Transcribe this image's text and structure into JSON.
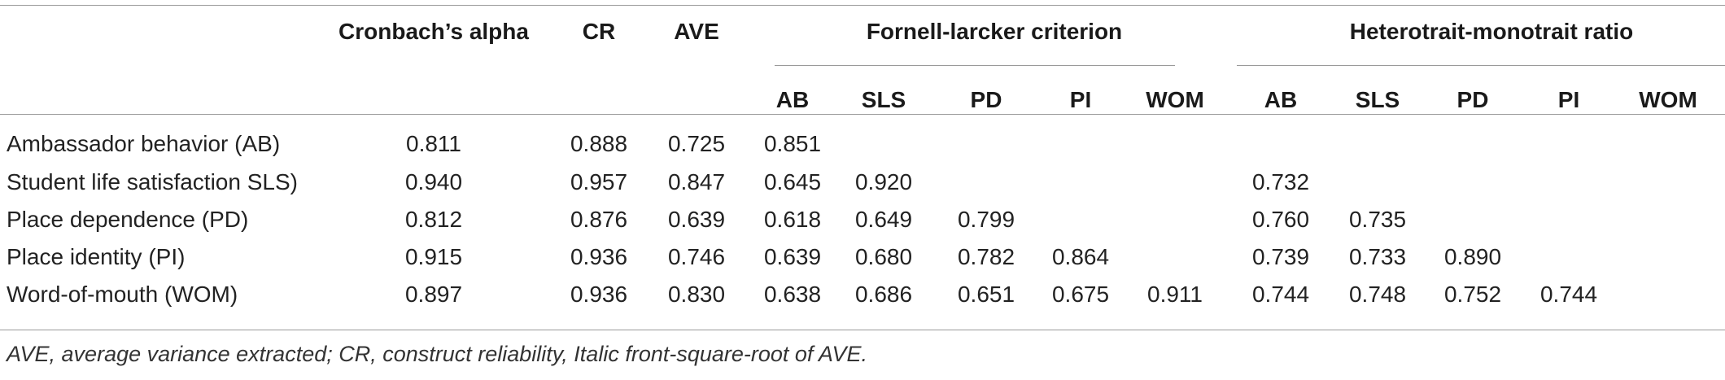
{
  "table": {
    "group_headers": {
      "cronbach": "Cronbach’s alpha",
      "cr": "CR",
      "ave": "AVE",
      "fornell": "Fornell-larcker criterion",
      "htmt": "Heterotrait-monotrait ratio"
    },
    "sub_headers": {
      "fornell": [
        "AB",
        "SLS",
        "PD",
        "PI",
        "WOM"
      ],
      "htmt": [
        "AB",
        "SLS",
        "PD",
        "PI",
        "WOM"
      ]
    },
    "rows": [
      {
        "label": "Ambassador behavior (AB)",
        "cronbach": "0.811",
        "cr": "0.888",
        "ave": "0.725",
        "fornell": [
          "0.851",
          "",
          "",
          "",
          ""
        ],
        "htmt": [
          "",
          "",
          "",
          "",
          ""
        ]
      },
      {
        "label": "Student life satisfaction SLS)",
        "cronbach": "0.940",
        "cr": "0.957",
        "ave": "0.847",
        "fornell": [
          "0.645",
          "0.920",
          "",
          "",
          ""
        ],
        "htmt": [
          "0.732",
          "",
          "",
          "",
          ""
        ]
      },
      {
        "label": "Place dependence (PD)",
        "cronbach": "0.812",
        "cr": "0.876",
        "ave": "0.639",
        "fornell": [
          "0.618",
          "0.649",
          "0.799",
          "",
          ""
        ],
        "htmt": [
          "0.760",
          "0.735",
          "",
          "",
          ""
        ]
      },
      {
        "label": "Place identity (PI)",
        "cronbach": "0.915",
        "cr": "0.936",
        "ave": "0.746",
        "fornell": [
          "0.639",
          "0.680",
          "0.782",
          "0.864",
          ""
        ],
        "htmt": [
          "0.739",
          "0.733",
          "0.890",
          "",
          ""
        ]
      },
      {
        "label": "Word-of-mouth (WOM)",
        "cronbach": "0.897",
        "cr": "0.936",
        "ave": "0.830",
        "fornell": [
          "0.638",
          "0.686",
          "0.651",
          "0.675",
          "0.911"
        ],
        "htmt": [
          "0.744",
          "0.748",
          "0.752",
          "0.744",
          ""
        ]
      }
    ],
    "footnote": "AVE, average variance extracted; CR, construct reliability, Italic front-square-root of AVE."
  }
}
